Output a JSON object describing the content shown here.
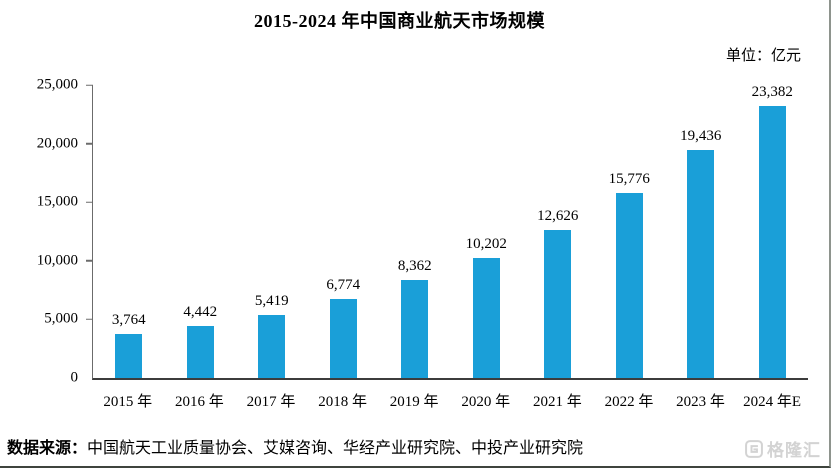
{
  "title": "2015-2024 年中国商业航天市场规模",
  "unit_label": "单位：亿元",
  "source": {
    "prefix": "数据来源：",
    "text": "中国航天工业质量协会、艾媒咨询、华经产业研究院、中投产业研究院"
  },
  "watermark": {
    "brand": "格隆汇"
  },
  "colors": {
    "bar": "#1A9FD8",
    "axis": "#6b6b6b",
    "text": "#000000",
    "watermark": "#d3d3d3"
  },
  "chart_data": {
    "type": "bar",
    "title": "2015-2024 年中国商业航天市场规模",
    "unit": "亿元",
    "categories": [
      "2015 年",
      "2016 年",
      "2017 年",
      "2018 年",
      "2019 年",
      "2020 年",
      "2021 年",
      "2022 年",
      "2023 年",
      "2024 年E"
    ],
    "values": [
      3764,
      4442,
      5419,
      6774,
      8362,
      10202,
      12626,
      15776,
      19436,
      23382
    ],
    "value_labels": [
      "3,764",
      "4,442",
      "5,419",
      "6,774",
      "8,362",
      "10,202",
      "12,626",
      "15,776",
      "19,436",
      "23,382"
    ],
    "xlabel": "",
    "ylabel": "",
    "ylim": [
      0,
      25000
    ],
    "yticks": [
      0,
      5000,
      10000,
      15000,
      20000,
      25000
    ],
    "ytick_labels": [
      "0",
      "5,000",
      "10,000",
      "15,000",
      "20,000",
      "25,000"
    ],
    "grid": false,
    "legend": false,
    "bar_color": "#1A9FD8"
  }
}
